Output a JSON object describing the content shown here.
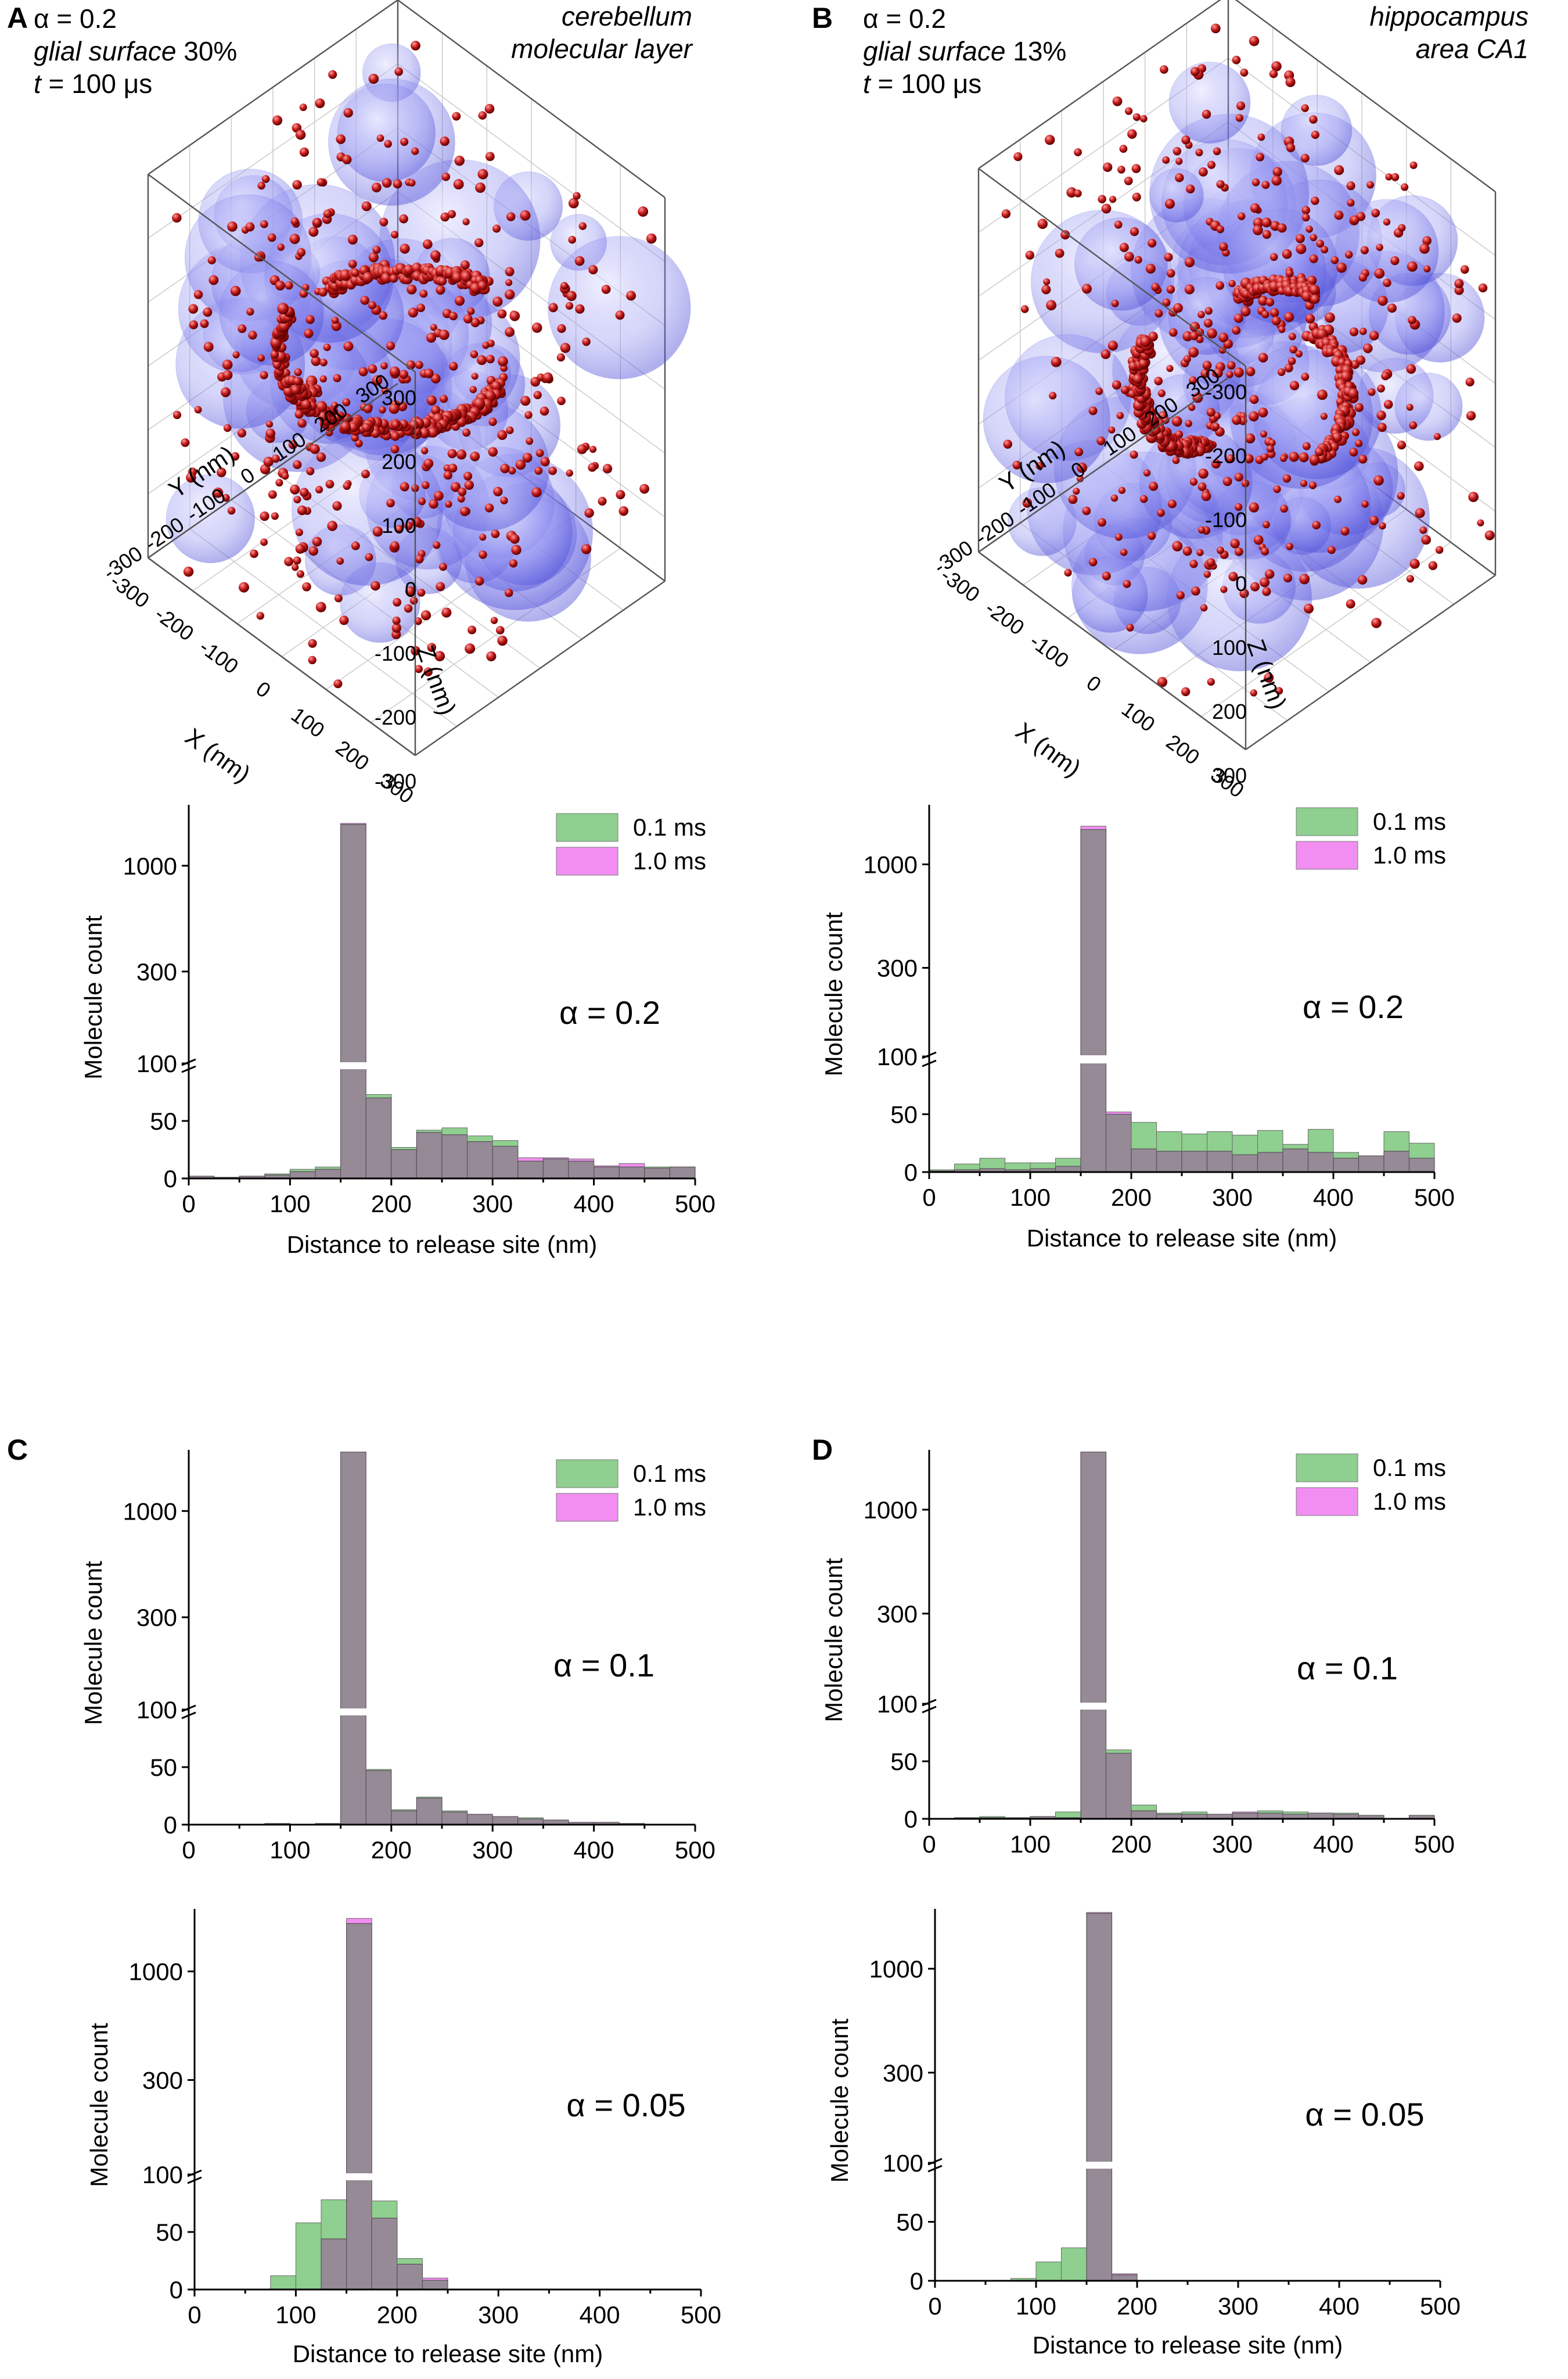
{
  "colors": {
    "green": "#8fcf8f",
    "magenta": "#f28ef2",
    "overlap": "#958a95",
    "glia": "#7070f0",
    "molecule": "#b01818"
  },
  "panels": {
    "A": {
      "label": "A",
      "alpha_line": "α = 0.2",
      "glial_word": "glial surface",
      "glial_pct": " 30%",
      "t_word": "t",
      "t_rest": " = 100 μs",
      "region_line1": "cerebellum",
      "region_line2": "molecular layer",
      "axis_x": "X (nm)",
      "axis_y": "Y (nm)",
      "axis_z": "Z (nm)",
      "ticks_x": [
        "300",
        "200",
        "100",
        "0",
        "-100",
        "-200",
        "-300"
      ],
      "ticks_y": [
        "300",
        "200",
        "100",
        "0",
        "-100",
        "-200",
        "-300"
      ],
      "ticks_z": [
        "300",
        "200",
        "100",
        "0",
        "-100",
        "-200",
        "-300"
      ]
    },
    "B": {
      "label": "B",
      "alpha_line": "α = 0.2",
      "glial_word": "glial surface",
      "glial_pct": " 13%",
      "t_word": "t",
      "t_rest": " = 100 μs",
      "region_line1": "hippocampus",
      "region_line2": "area CA1",
      "axis_x": "X (nm)",
      "axis_y": "Y (nm)",
      "axis_z": "Z (nm)",
      "ticks_x": [
        "300",
        "200",
        "100",
        "0",
        "-100",
        "-200",
        "-300"
      ],
      "ticks_y": [
        "300",
        "200",
        "100",
        "0",
        "-100",
        "-200",
        "-300"
      ],
      "ticks_z": [
        "-300",
        "-200",
        "-100",
        "0",
        "100",
        "200",
        "300"
      ]
    },
    "C": {
      "label": "C"
    },
    "D": {
      "label": "D"
    }
  },
  "chart_data": [
    {
      "id": "A-hist",
      "type": "bar",
      "title": "",
      "annotation": "α = 0.2",
      "xlabel": "Distance to release site (nm)",
      "ylabel": "Molecule count",
      "xlim": [
        0,
        500
      ],
      "x_ticks": [
        "0",
        "100",
        "200",
        "300",
        "400",
        "500"
      ],
      "y_lower_ticks": [
        "0",
        "50",
        "100"
      ],
      "y_upper_ticks": [
        "300",
        "1000"
      ],
      "legend": [
        "0.1 ms",
        "1.0 ms"
      ],
      "legend_position": "top-right",
      "bin_width": 25,
      "bin_starts": [
        0,
        25,
        50,
        75,
        100,
        125,
        150,
        175,
        200,
        225,
        250,
        275,
        300,
        325,
        350,
        375,
        400,
        425,
        450,
        475
      ],
      "series": [
        {
          "name": "0.1 ms",
          "values": [
            2,
            1,
            2,
            4,
            8,
            10,
            1600,
            73,
            27,
            42,
            44,
            37,
            33,
            15,
            17,
            15,
            10,
            10,
            10,
            10
          ]
        },
        {
          "name": "1.0 ms",
          "values": [
            2,
            1,
            2,
            3,
            6,
            8,
            1620,
            70,
            25,
            40,
            38,
            32,
            28,
            18,
            18,
            17,
            11,
            13,
            9,
            10
          ]
        }
      ]
    },
    {
      "id": "B-hist",
      "type": "bar",
      "title": "",
      "annotation": "α = 0.2",
      "xlabel": "Distance to release site (nm)",
      "ylabel": "Molecule count",
      "xlim": [
        0,
        500
      ],
      "x_ticks": [
        "0",
        "100",
        "200",
        "300",
        "400",
        "500"
      ],
      "y_lower_ticks": [
        "0",
        "50",
        "100"
      ],
      "y_upper_ticks": [
        "300",
        "1000"
      ],
      "legend": [
        "0.1 ms",
        "1.0 ms"
      ],
      "legend_position": "top-right",
      "bin_width": 25,
      "bin_starts": [
        0,
        25,
        50,
        75,
        100,
        125,
        150,
        175,
        200,
        225,
        250,
        275,
        300,
        325,
        350,
        375,
        400,
        425,
        450,
        475
      ],
      "series": [
        {
          "name": "0.1 ms",
          "values": [
            2,
            7,
            12,
            8,
            8,
            12,
            1500,
            50,
            43,
            35,
            33,
            35,
            32,
            36,
            24,
            37,
            17,
            14,
            35,
            25
          ]
        },
        {
          "name": "1.0 ms",
          "values": [
            1,
            2,
            3,
            2,
            3,
            5,
            1560,
            52,
            20,
            18,
            18,
            18,
            15,
            17,
            20,
            17,
            12,
            14,
            18,
            12
          ]
        }
      ]
    },
    {
      "id": "C-top",
      "type": "bar",
      "title": "",
      "annotation": "α = 0.1",
      "xlabel": "",
      "ylabel": "Molecule count",
      "xlim": [
        0,
        500
      ],
      "x_ticks": [
        "0",
        "100",
        "200",
        "300",
        "400",
        "500"
      ],
      "y_lower_ticks": [
        "0",
        "50",
        "100"
      ],
      "y_upper_ticks": [
        "300",
        "1000"
      ],
      "legend": [
        "0.1 ms",
        "1.0 ms"
      ],
      "legend_position": "top-right",
      "bin_width": 25,
      "bin_starts": [
        0,
        25,
        50,
        75,
        100,
        125,
        150,
        175,
        200,
        225,
        250,
        275,
        300,
        325,
        350,
        375,
        400,
        425,
        450,
        475
      ],
      "series": [
        {
          "name": "0.1 ms",
          "values": [
            0,
            0,
            0,
            1,
            0,
            1,
            1950,
            48,
            13,
            24,
            12,
            9,
            7,
            6,
            4,
            2,
            2,
            1,
            0,
            0
          ]
        },
        {
          "name": "1.0 ms",
          "values": [
            0,
            0,
            0,
            1,
            0,
            1,
            1950,
            47,
            12,
            23,
            11,
            9,
            7,
            5,
            4,
            2,
            2,
            1,
            0,
            0
          ]
        }
      ]
    },
    {
      "id": "C-bottom",
      "type": "bar",
      "title": "",
      "annotation": "α = 0.05",
      "xlabel": "Distance to release site (nm)",
      "ylabel": "Molecule count",
      "xlim": [
        0,
        500
      ],
      "x_ticks": [
        "0",
        "100",
        "200",
        "300",
        "400",
        "500"
      ],
      "y_lower_ticks": [
        "0",
        "50",
        "100"
      ],
      "y_upper_ticks": [
        "300",
        "1000"
      ],
      "legend": [],
      "legend_position": "",
      "bin_width": 25,
      "bin_starts": [
        0,
        25,
        50,
        75,
        100,
        125,
        150,
        175,
        200,
        225,
        250,
        275,
        300,
        325,
        350,
        375,
        400,
        425,
        450,
        475
      ],
      "series": [
        {
          "name": "0.1 ms",
          "values": [
            0,
            0,
            0,
            12,
            58,
            78,
            1700,
            77,
            27,
            8,
            0,
            0,
            0,
            0,
            0,
            0,
            0,
            0,
            0,
            0
          ]
        },
        {
          "name": "1.0 ms",
          "values": [
            0,
            0,
            0,
            0,
            0,
            44,
            1800,
            62,
            22,
            10,
            0,
            0,
            0,
            0,
            0,
            0,
            0,
            0,
            0,
            0
          ]
        }
      ]
    },
    {
      "id": "D-top",
      "type": "bar",
      "title": "",
      "annotation": "α = 0.1",
      "xlabel": "",
      "ylabel": "Molecule count",
      "xlim": [
        0,
        500
      ],
      "x_ticks": [
        "0",
        "100",
        "200",
        "300",
        "400",
        "500"
      ],
      "y_lower_ticks": [
        "0",
        "50",
        "100"
      ],
      "y_upper_ticks": [
        "300",
        "1000"
      ],
      "legend": [
        "0.1 ms",
        "1.0 ms"
      ],
      "legend_position": "top-right",
      "bin_width": 25,
      "bin_starts": [
        0,
        25,
        50,
        75,
        100,
        125,
        150,
        175,
        200,
        225,
        250,
        275,
        300,
        325,
        350,
        375,
        400,
        425,
        450,
        475
      ],
      "series": [
        {
          "name": "0.1 ms",
          "values": [
            0,
            1,
            2,
            1,
            2,
            6,
            1950,
            60,
            12,
            5,
            6,
            4,
            5,
            7,
            6,
            5,
            5,
            3,
            0,
            3
          ]
        },
        {
          "name": "1.0 ms",
          "values": [
            0,
            1,
            1,
            1,
            2,
            1,
            1950,
            57,
            7,
            4,
            4,
            4,
            6,
            5,
            4,
            5,
            4,
            3,
            0,
            3
          ]
        }
      ]
    },
    {
      "id": "D-bottom",
      "type": "bar",
      "title": "",
      "annotation": "α = 0.05",
      "xlabel": "Distance to release site (nm)",
      "ylabel": "Molecule count",
      "xlim": [
        0,
        500
      ],
      "x_ticks": [
        "0",
        "100",
        "200",
        "300",
        "400",
        "500"
      ],
      "y_lower_ticks": [
        "0",
        "50",
        "100"
      ],
      "y_upper_ticks": [
        "300",
        "1000"
      ],
      "legend": [],
      "legend_position": "",
      "bin_width": 25,
      "bin_starts": [
        0,
        25,
        50,
        75,
        100,
        125,
        150,
        175,
        200,
        225,
        250,
        275,
        300,
        325,
        350,
        375,
        400,
        425,
        450,
        475
      ],
      "series": [
        {
          "name": "0.1 ms",
          "values": [
            0,
            0,
            0,
            2,
            16,
            28,
            1900,
            5,
            0,
            0,
            0,
            0,
            0,
            0,
            0,
            0,
            0,
            0,
            0,
            0
          ]
        },
        {
          "name": "1.0 ms",
          "values": [
            0,
            0,
            0,
            0,
            0,
            0,
            1920,
            6,
            0,
            0,
            0,
            0,
            0,
            0,
            0,
            0,
            0,
            0,
            0,
            0
          ]
        }
      ]
    }
  ]
}
